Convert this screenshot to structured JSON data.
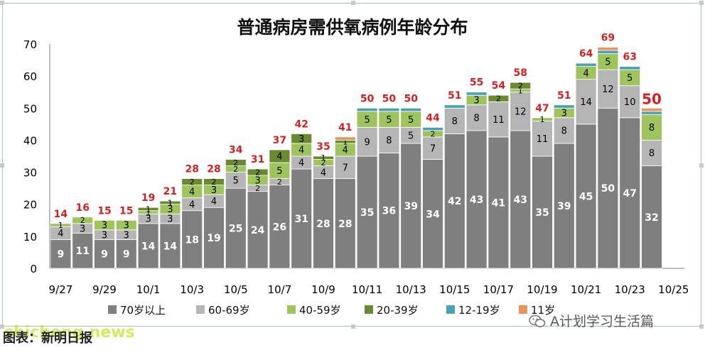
{
  "chart_data": {
    "type": "bar",
    "stacked": true,
    "title": "普通病房需供氧病例年龄分布",
    "categories": [
      "9/27",
      "9/28",
      "9/29",
      "9/30",
      "10/1",
      "10/2",
      "10/3",
      "10/4",
      "10/5",
      "10/6",
      "10/7",
      "10/8",
      "10/9",
      "10/10",
      "10/11",
      "10/12",
      "10/13",
      "10/14",
      "10/15",
      "10/16",
      "10/17",
      "10/18",
      "10/19",
      "10/20",
      "10/21",
      "10/22",
      "10/23",
      "10/24"
    ],
    "x_tick_labels": [
      "9/27",
      "9/29",
      "10/1",
      "10/3",
      "10/5",
      "10/7",
      "10/9",
      "10/11",
      "10/13",
      "10/15",
      "10/17",
      "10/19",
      "10/21",
      "10/23",
      "10/25"
    ],
    "ylim": [
      0,
      70
    ],
    "y_ticks": [
      0,
      10,
      20,
      30,
      40,
      50,
      60,
      70
    ],
    "totals": [
      14,
      16,
      15,
      15,
      19,
      21,
      28,
      28,
      34,
      31,
      37,
      42,
      35,
      41,
      50,
      50,
      50,
      44,
      51,
      55,
      54,
      58,
      47,
      51,
      64,
      69,
      63,
      50
    ],
    "series": [
      {
        "name": "70岁以上",
        "color": "#7f7f7f",
        "values": [
          9,
          11,
          9,
          9,
          14,
          14,
          18,
          19,
          25,
          24,
          26,
          31,
          28,
          28,
          35,
          36,
          39,
          34,
          42,
          43,
          41,
          43,
          35,
          39,
          45,
          50,
          47,
          32
        ]
      },
      {
        "name": "60-69岁",
        "color": "#b5b5b5",
        "values": [
          4,
          3,
          3,
          3,
          3,
          3,
          4,
          4,
          5,
          2,
          2,
          4,
          4,
          7,
          9,
          8,
          5,
          7,
          8,
          8,
          11,
          12,
          11,
          8,
          14,
          12,
          10,
          8
        ]
      },
      {
        "name": "40-59岁",
        "color": "#9fc45e",
        "values": [
          1,
          2,
          3,
          3,
          1,
          3,
          4,
          3,
          2,
          3,
          5,
          4,
          2,
          4,
          5,
          5,
          5,
          2,
          0,
          3,
          0,
          1,
          1,
          3,
          4,
          5,
          5,
          8
        ]
      },
      {
        "name": "20-39岁",
        "color": "#6a8a32",
        "values": [
          0,
          0,
          0,
          0,
          1,
          1,
          2,
          2,
          2,
          2,
          4,
          3,
          1,
          1,
          0,
          0,
          0,
          0,
          0,
          0,
          2,
          2,
          0,
          0,
          0,
          0,
          0,
          0
        ]
      },
      {
        "name": "12-19岁",
        "color": "#4aa0b5",
        "values": [
          0,
          0,
          0,
          0,
          0,
          0,
          0,
          0,
          0,
          0,
          0,
          0,
          0,
          0,
          1,
          1,
          1,
          1,
          1,
          1,
          0,
          0,
          0,
          1,
          1,
          1,
          1,
          1
        ]
      },
      {
        "name": "11岁",
        "color": "#e8935a",
        "values": [
          0,
          0,
          0,
          0,
          0,
          0,
          0,
          0,
          0,
          0,
          0,
          0,
          0,
          1,
          0,
          0,
          0,
          0,
          0,
          0,
          0,
          0,
          0,
          0,
          0,
          1,
          0,
          1
        ]
      }
    ],
    "grid": false,
    "legend_position": "bottom",
    "colors": {
      "total_label": "#d42020",
      "axis_text": "#000000",
      "inner_label_dark": "#ffffff",
      "inner_label_light": "#000000"
    }
  },
  "footer": {
    "source_label": "图表：新明日报",
    "watermark_site": "shicheng.news",
    "watermark_wechat": "A计划学习生活篇"
  }
}
